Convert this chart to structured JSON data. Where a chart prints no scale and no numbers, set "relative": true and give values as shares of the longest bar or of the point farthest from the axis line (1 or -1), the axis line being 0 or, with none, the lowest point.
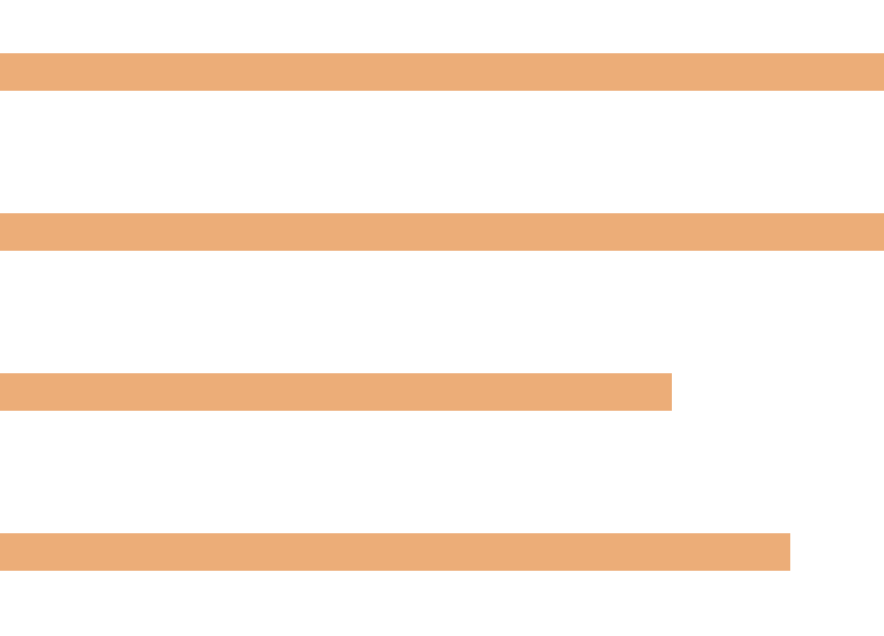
{
  "chart_data": {
    "type": "bar",
    "orientation": "horizontal",
    "relative": true,
    "categories": [
      null,
      null,
      null,
      null
    ],
    "values": [
      1,
      1,
      0.76,
      0.894
    ],
    "color": "#ecad78"
  }
}
